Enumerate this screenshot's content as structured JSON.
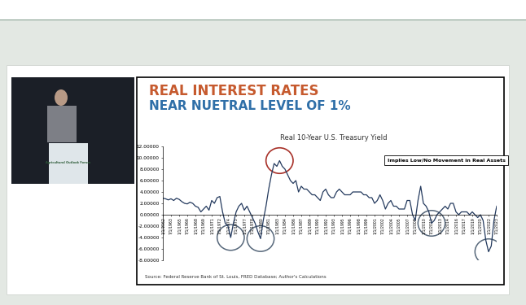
{
  "chart_data": {
    "type": "line",
    "title": "REAL INTEREST RATES",
    "subtitle": "NEAR NUETRAL LEVEL OF 1%",
    "annotations": {
      "chart_title": "Real 10-Year U.S. Treasury Yield",
      "note": "Implies Low/No Movement in Real Assets",
      "source": "Source: Federal Reserve Bank of St. Louis, FRED Database; Author's Calculations"
    },
    "color": "#243a5e",
    "x": [
      1962,
      1962.5,
      1963,
      1963.5,
      1964,
      1964.5,
      1965,
      1965.5,
      1966,
      1966.5,
      1967,
      1967.5,
      1968,
      1968.5,
      1969,
      1969.5,
      1970,
      1970.5,
      1971,
      1971.5,
      1972,
      1972.5,
      1973,
      1973.5,
      1974,
      1974.5,
      1975,
      1975.5,
      1976,
      1976.5,
      1977,
      1977.5,
      1978,
      1978.5,
      1979,
      1979.5,
      1980,
      1980.5,
      1981,
      1981.5,
      1982,
      1982.5,
      1983,
      1983.5,
      1984,
      1984.5,
      1985,
      1985.5,
      1986,
      1986.5,
      1987,
      1987.5,
      1988,
      1988.5,
      1989,
      1989.5,
      1990,
      1990.5,
      1991,
      1991.5,
      1992,
      1992.5,
      1993,
      1993.5,
      1994,
      1994.5,
      1995,
      1995.5,
      1996,
      1996.5,
      1997,
      1997.5,
      1998,
      1998.5,
      1999,
      1999.5,
      2000,
      2000.5,
      2001,
      2001.5,
      2002,
      2002.5,
      2003,
      2003.5,
      2004,
      2004.5,
      2005,
      2005.5,
      2006,
      2006.5,
      2007,
      2007.5,
      2008,
      2008.5,
      2009,
      2009.5,
      2010,
      2010.5,
      2011,
      2011.5,
      2012,
      2012.5,
      2013,
      2013.5,
      2014,
      2014.5,
      2015,
      2015.5,
      2016,
      2016.5,
      2017,
      2017.5,
      2018,
      2018.5,
      2019,
      2019.5,
      2020,
      2020.5,
      2021,
      2021.5,
      2022,
      2022.5,
      2023,
      2023.5
    ],
    "values": [
      2.9,
      2.8,
      2.6,
      2.8,
      2.5,
      2.9,
      2.7,
      2.3,
      2.0,
      1.9,
      2.2,
      2.0,
      1.5,
      1.3,
      0.5,
      1.0,
      1.5,
      0.8,
      2.5,
      2.0,
      3.0,
      3.2,
      0.5,
      -1.5,
      -2.0,
      -4.0,
      -1.5,
      0.5,
      1.5,
      2.0,
      0.8,
      1.5,
      0.5,
      -0.5,
      -1.5,
      -3.0,
      -4.2,
      -1.0,
      1.5,
      4.5,
      7.0,
      9.0,
      8.5,
      9.5,
      8.5,
      8.0,
      7.0,
      6.0,
      5.5,
      6.0,
      4.0,
      5.0,
      4.5,
      4.5,
      4.0,
      3.5,
      3.5,
      3.0,
      2.5,
      4.0,
      4.5,
      3.5,
      3.0,
      3.0,
      4.0,
      4.5,
      4.0,
      3.5,
      3.5,
      3.5,
      4.0,
      4.0,
      4.0,
      4.0,
      3.5,
      3.5,
      3.0,
      3.0,
      2.0,
      2.5,
      3.5,
      2.5,
      1.0,
      2.0,
      2.5,
      1.5,
      1.5,
      1.0,
      1.0,
      1.0,
      2.5,
      2.5,
      0.0,
      -1.0,
      2.5,
      5.0,
      2.0,
      1.5,
      0.5,
      -1.5,
      -1.0,
      0.0,
      0.5,
      1.0,
      1.5,
      1.0,
      2.0,
      2.0,
      0.5,
      0.0,
      0.5,
      0.5,
      0.5,
      0.0,
      0.5,
      0.0,
      -0.5,
      0.0,
      -1.0,
      -4.5,
      -6.5,
      -5.5,
      -1.0,
      1.5
    ],
    "xlim": [
      1962,
      2023.5
    ],
    "xticks": [
      {
        "value": 1962,
        "label": "1/1/1962"
      },
      {
        "value": 1963.5,
        "label": "7/1/1963"
      },
      {
        "value": 1965,
        "label": "1/1/1965"
      },
      {
        "value": 1966.5,
        "label": "7/1/1966"
      },
      {
        "value": 1968,
        "label": "1/1/1968"
      },
      {
        "value": 1969.5,
        "label": "7/1/1969"
      },
      {
        "value": 1971,
        "label": "1/1/1971"
      },
      {
        "value": 1972.5,
        "label": "7/1/1972"
      },
      {
        "value": 1974,
        "label": "1/1/1974"
      },
      {
        "value": 1975.5,
        "label": "7/1/1975"
      },
      {
        "value": 1977,
        "label": "1/1/1977"
      },
      {
        "value": 1978.5,
        "label": "7/1/1978"
      },
      {
        "value": 1980,
        "label": "1/1/1980"
      },
      {
        "value": 1981.5,
        "label": "7/1/1981"
      },
      {
        "value": 1983,
        "label": "1/1/1983"
      },
      {
        "value": 1984.5,
        "label": "7/1/1984"
      },
      {
        "value": 1986,
        "label": "1/1/1986"
      },
      {
        "value": 1987.5,
        "label": "7/1/1987"
      },
      {
        "value": 1989,
        "label": "1/1/1989"
      },
      {
        "value": 1990.5,
        "label": "7/1/1990"
      },
      {
        "value": 1992,
        "label": "1/1/1992"
      },
      {
        "value": 1993.5,
        "label": "7/1/1993"
      },
      {
        "value": 1995,
        "label": "1/1/1995"
      },
      {
        "value": 1996.5,
        "label": "7/1/1996"
      },
      {
        "value": 1998,
        "label": "1/1/1998"
      },
      {
        "value": 1999.5,
        "label": "7/1/1999"
      },
      {
        "value": 2001,
        "label": "1/1/2001"
      },
      {
        "value": 2002.5,
        "label": "7/1/2002"
      },
      {
        "value": 2004,
        "label": "1/1/2004"
      },
      {
        "value": 2005.5,
        "label": "7/1/2005"
      },
      {
        "value": 2007,
        "label": "1/1/2007"
      },
      {
        "value": 2008.5,
        "label": "7/1/2008"
      },
      {
        "value": 2010,
        "label": "1/1/2010"
      },
      {
        "value": 2011.5,
        "label": "7/1/2011"
      },
      {
        "value": 2013,
        "label": "1/1/2013"
      },
      {
        "value": 2014.5,
        "label": "7/1/2014"
      },
      {
        "value": 2016,
        "label": "1/1/2016"
      },
      {
        "value": 2017.5,
        "label": "7/1/2017"
      },
      {
        "value": 2019,
        "label": "1/1/2019"
      },
      {
        "value": 2020.5,
        "label": "7/1/2020"
      },
      {
        "value": 2022,
        "label": "1/1/2022"
      },
      {
        "value": 2023.5,
        "label": "7/1/2023"
      }
    ],
    "ylim": [
      -8,
      12
    ],
    "yticks": [
      {
        "value": -8,
        "label": "-8.00000"
      },
      {
        "value": -6,
        "label": "-6.00000"
      },
      {
        "value": -4,
        "label": "-4.00000"
      },
      {
        "value": -2,
        "label": "-2.00000"
      },
      {
        "value": 0,
        "label": "0.00000"
      },
      {
        "value": 2,
        "label": "2.00000"
      },
      {
        "value": 4,
        "label": "4.00000"
      },
      {
        "value": 6,
        "label": "6.00000"
      },
      {
        "value": 8,
        "label": "8.00000"
      },
      {
        "value": 10,
        "label": "10.00000"
      },
      {
        "value": 12,
        "label": "12.00000"
      }
    ],
    "grid": false
  },
  "speaker_video": {
    "podium_sign": "Agricultural Outlook Forum"
  }
}
